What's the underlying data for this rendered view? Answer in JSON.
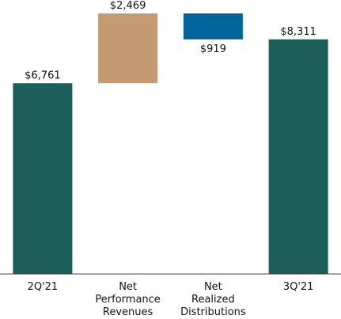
{
  "chart_data": {
    "type": "waterfall",
    "categories": [
      "2Q'21",
      "Net\nPerformance\nRevenues",
      "Net\nRealized\nDistributions",
      "3Q'21"
    ],
    "values": [
      6761,
      2469,
      -919,
      8311
    ],
    "value_labels": [
      "$6,761",
      "$2,469",
      "$919",
      "$8,311"
    ],
    "measure": [
      "absolute",
      "relative",
      "relative",
      "absolute"
    ],
    "colors": [
      "#1b5e5a",
      "#c49a72",
      "#00659b",
      "#1b5e5a"
    ]
  }
}
